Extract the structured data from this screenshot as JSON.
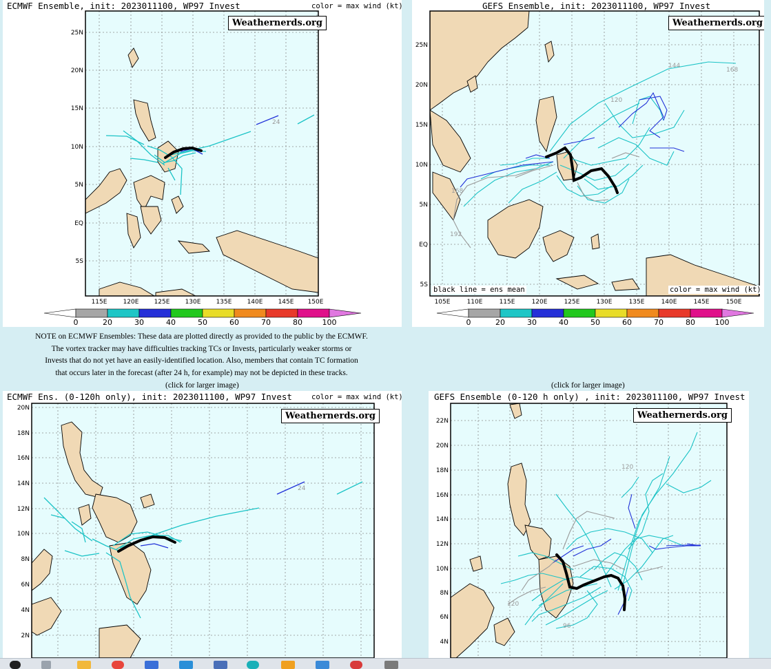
{
  "panels": [
    {
      "id": "p1",
      "title": "ECMWF  Ensemble,  init:  2023011100,  WP97  Invest",
      "color_label": "color  =  max  wind  (kt)",
      "brand": "Weathernerds.org",
      "lat_labels": [
        "25N",
        "20N",
        "15N",
        "10N",
        "5N",
        "EQ",
        "5S"
      ],
      "lon_labels": [
        "115E",
        "120E",
        "125E",
        "130E",
        "135E",
        "140E",
        "145E",
        "150E"
      ],
      "colorbar_values": [
        "0",
        "20",
        "30",
        "40",
        "50",
        "60",
        "70",
        "80",
        "100"
      ],
      "hour_label": "24"
    },
    {
      "id": "p2",
      "title": "GEFS  Ensemble,  init:  2023011100,  WP97  Invest",
      "color_label": "color  =  max  wind  (kt)",
      "mean_label": "black  line  =  ens  mean",
      "brand": "Weathernerds.org",
      "lat_labels": [
        "25N",
        "20N",
        "15N",
        "10N",
        "5N",
        "EQ",
        "5S"
      ],
      "lon_labels": [
        "105E",
        "110E",
        "115E",
        "120E",
        "125E",
        "130E",
        "135E",
        "140E",
        "145E",
        "150E"
      ],
      "colorbar_values": [
        "0",
        "20",
        "30",
        "40",
        "50",
        "60",
        "70",
        "80",
        "100"
      ],
      "hour_labels": [
        "144",
        "168",
        "120",
        "168",
        "192"
      ]
    },
    {
      "id": "p3",
      "title": "ECMWF  Ens.  (0-120h  only),  init:  2023011100,  WP97  Invest",
      "color_label": "color  =  max  wind  (kt)",
      "brand": "Weathernerds.org",
      "lat_labels": [
        "20N",
        "18N",
        "16N",
        "14N",
        "12N",
        "10N",
        "8N",
        "6N",
        "4N",
        "2N"
      ],
      "hour_label": "24"
    },
    {
      "id": "p4",
      "title": "GEFS  Ensemble  (0-120  h  only)  ,  init:  2023011100,  WP97  Invest",
      "brand": "Weathernerds.org",
      "lat_labels": [
        "22N",
        "20N",
        "18N",
        "16N",
        "14N",
        "12N",
        "10N",
        "8N",
        "6N",
        "4N"
      ],
      "hour_labels": [
        "120",
        "120",
        "96"
      ]
    }
  ],
  "note_lines": [
    "NOTE on ECMWF Ensembles: These data are plotted directly as provided to the public by the ECMWF.",
    "The vortex tracker may have difficulties tracking TCs or Invests, particularly weaker storms or",
    "Invests that do not yet have an easily-identified location. Also, members that contain TC formation",
    "that occurs later in the forecast (after 24 h, for example) may not be depicted in these tracks."
  ],
  "click_left": "(click for larger image)",
  "click_right": "(click for larger image)",
  "colors": {
    "ocean": "#e6fcfd",
    "land": "#f0d9b5",
    "grid": "#8a8a8a",
    "cyan": "#1bc3c6",
    "blue": "#2030d8",
    "gray": "#9a9a9a",
    "mean": "#000000"
  },
  "colorbar_colors": [
    "#a6a6a6",
    "#1ec6c6",
    "#2530d8",
    "#22c81e",
    "#e8dc28",
    "#f08a1e",
    "#e83a2a",
    "#e0108a",
    "#e078e0"
  ]
}
